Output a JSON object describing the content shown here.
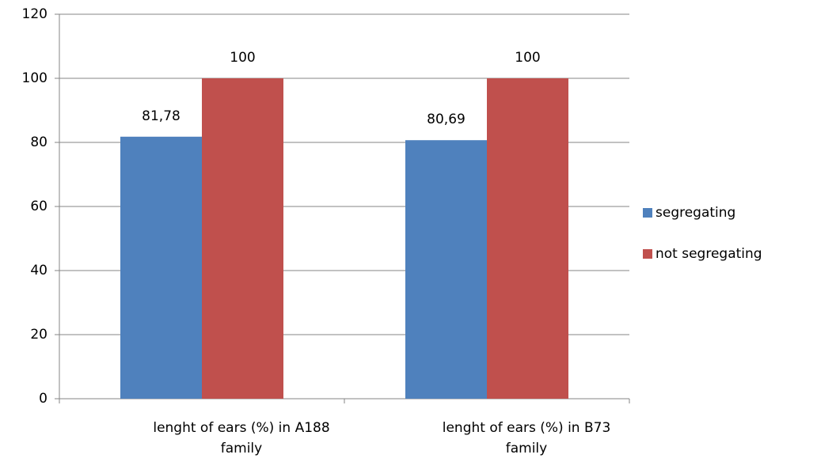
{
  "chart_data": {
    "type": "bar",
    "categories": [
      "lenght of ears (%) in A188 family",
      "lenght of ears (%) in B73 family"
    ],
    "series": [
      {
        "name": "segregating",
        "color": "#4f81bd",
        "values": [
          81.78,
          80.69
        ],
        "value_labels": [
          "81,78",
          "80,69"
        ]
      },
      {
        "name": "not segregating",
        "color": "#c0504d",
        "values": [
          100,
          100
        ],
        "value_labels": [
          "100",
          "100"
        ]
      }
    ],
    "ylim": [
      0,
      120
    ],
    "yticks": [
      0,
      20,
      40,
      60,
      80,
      100,
      120
    ],
    "grid": true,
    "legend": "right"
  }
}
